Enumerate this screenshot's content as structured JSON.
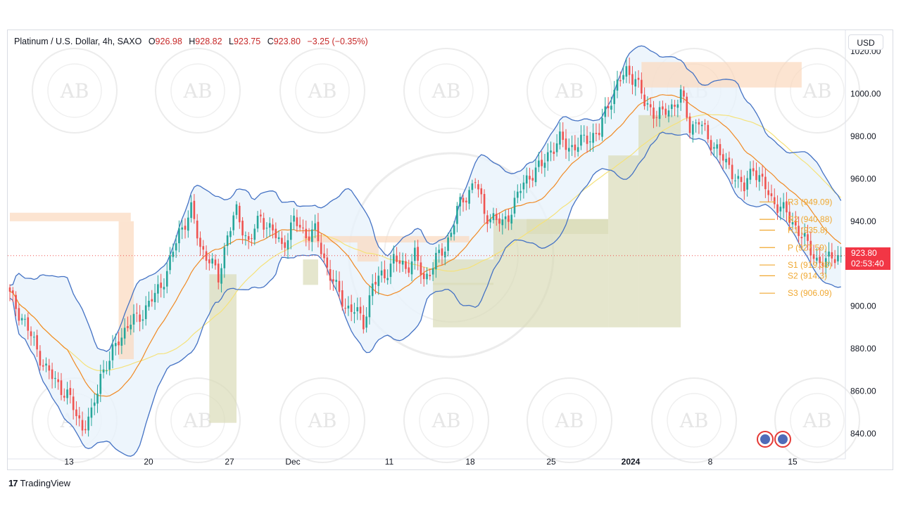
{
  "header": {
    "symbol": "Platinum / U.S. Dollar, 4h, SAXO",
    "open_label": "O",
    "open": "926.98",
    "high_label": "H",
    "high": "928.82",
    "low_label": "L",
    "low": "923.75",
    "close_label": "C",
    "close": "923.80",
    "change": "−3.25 (−0.35%)"
  },
  "currency_button": "USD",
  "price_tag": {
    "price": "923.80",
    "countdown": "02:53:40"
  },
  "footer": {
    "brand": "TradingView"
  },
  "watermark_text": "AB",
  "colors": {
    "up": "#26a69a",
    "down": "#ef5350",
    "bb": "#4472c4",
    "bb_fill": "#e8f2fb",
    "mid": "#f08a24",
    "sma": "#f5e27a",
    "supply": "#fbd9bd",
    "demand": "#dadcb8",
    "pivot": "#f0a830"
  },
  "chart_data": {
    "type": "candlestick",
    "title": "Platinum / U.S. Dollar, 4h, SAXO",
    "y_range": [
      828,
      1030
    ],
    "y_ticks": [
      "1020.00",
      "1000.00",
      "980.00",
      "960.00",
      "940.00",
      "920.00",
      "900.00",
      "880.00",
      "860.00",
      "840.00"
    ],
    "x_ticks": [
      {
        "label": "13",
        "bold": false
      },
      {
        "label": "20",
        "bold": false
      },
      {
        "label": "27",
        "bold": false
      },
      {
        "label": "Dec",
        "bold": false
      },
      {
        "label": "11",
        "bold": false
      },
      {
        "label": "18",
        "bold": false
      },
      {
        "label": "25",
        "bold": false
      },
      {
        "label": "2024",
        "bold": true
      },
      {
        "label": "8",
        "bold": false
      },
      {
        "label": "15",
        "bold": false
      }
    ],
    "anchors": [
      [
        0,
        905
      ],
      [
        5,
        892
      ],
      [
        12,
        870
      ],
      [
        19,
        858
      ],
      [
        24,
        843
      ],
      [
        27,
        848
      ],
      [
        30,
        868
      ],
      [
        33,
        874
      ],
      [
        36,
        885
      ],
      [
        40,
        892
      ],
      [
        44,
        897
      ],
      [
        48,
        905
      ],
      [
        52,
        916
      ],
      [
        56,
        935
      ],
      [
        60,
        945
      ],
      [
        63,
        928
      ],
      [
        66,
        922
      ],
      [
        69,
        913
      ],
      [
        72,
        934
      ],
      [
        75,
        944
      ],
      [
        79,
        930
      ],
      [
        83,
        942
      ],
      [
        87,
        935
      ],
      [
        90,
        928
      ],
      [
        94,
        940
      ],
      [
        98,
        934
      ],
      [
        101,
        935
      ],
      [
        104,
        922
      ],
      [
        108,
        908
      ],
      [
        111,
        900
      ],
      [
        114,
        898
      ],
      [
        117,
        892
      ],
      [
        120,
        910
      ],
      [
        124,
        915
      ],
      [
        127,
        922
      ],
      [
        131,
        918
      ],
      [
        134,
        924
      ],
      [
        137,
        912
      ],
      [
        140,
        920
      ],
      [
        144,
        927
      ],
      [
        148,
        945
      ],
      [
        151,
        952
      ],
      [
        154,
        960
      ],
      [
        157,
        943
      ],
      [
        160,
        942
      ],
      [
        163,
        938
      ],
      [
        166,
        946
      ],
      [
        169,
        955
      ],
      [
        172,
        962
      ],
      [
        176,
        966
      ],
      [
        179,
        974
      ],
      [
        182,
        978
      ],
      [
        185,
        975
      ],
      [
        188,
        976
      ],
      [
        192,
        980
      ],
      [
        195,
        982
      ],
      [
        198,
        995
      ],
      [
        201,
        1005
      ],
      [
        204,
        1010
      ],
      [
        207,
        1008
      ],
      [
        210,
        995
      ],
      [
        213,
        992
      ],
      [
        216,
        990
      ],
      [
        219,
        994
      ],
      [
        222,
        1000
      ],
      [
        225,
        984
      ],
      [
        228,
        988
      ],
      [
        231,
        978
      ],
      [
        234,
        975
      ],
      [
        237,
        966
      ],
      [
        240,
        962
      ],
      [
        243,
        955
      ],
      [
        246,
        966
      ],
      [
        249,
        958
      ],
      [
        252,
        950
      ],
      [
        255,
        947
      ],
      [
        258,
        941
      ],
      [
        261,
        936
      ],
      [
        264,
        928
      ],
      [
        267,
        922
      ],
      [
        270,
        920
      ],
      [
        272,
        924
      ],
      [
        273,
        923.8
      ]
    ],
    "pivots": [
      {
        "label": "R3 (949.09)",
        "value": 949.09
      },
      {
        "label": "R2 (940.88)",
        "value": 940.88
      },
      {
        "label": "R1 (935.8)",
        "value": 935.8
      },
      {
        "label": "P (927.59)",
        "value": 927.59
      },
      {
        "label": "S1 (919.38)",
        "value": 919.38
      },
      {
        "label": "S2 (914.3)",
        "value": 914.3
      },
      {
        "label": "S3 (906.09)",
        "value": 906.09
      }
    ],
    "last_price": 923.8
  }
}
